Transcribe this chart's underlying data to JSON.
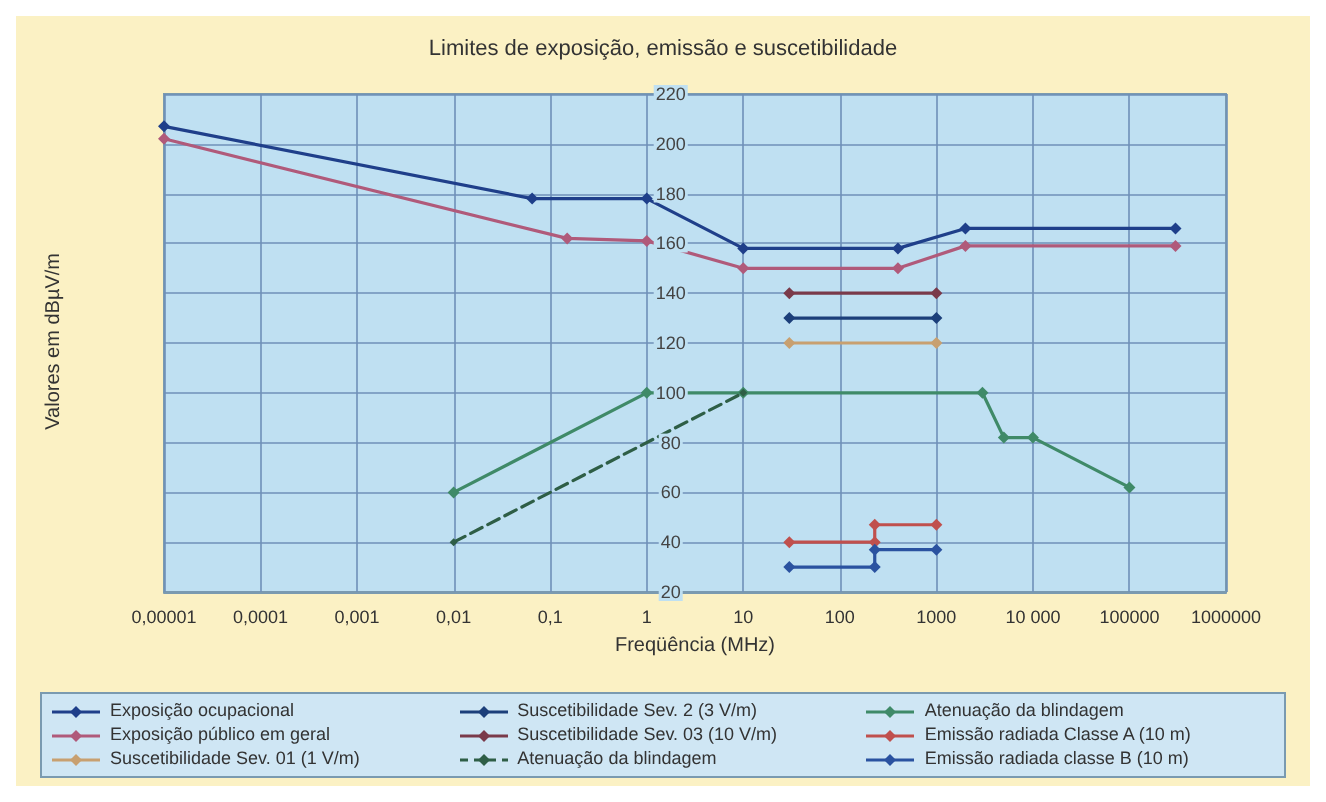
{
  "chart_data": {
    "type": "line",
    "title": "Limites de exposição, emissão e suscetibilidade",
    "xlabel": "Freqüência (MHz)",
    "ylabel": "Valores em dBµV/m",
    "log": "x",
    "xlim": [
      1e-05,
      1000000
    ],
    "xticks": [
      {
        "value": 1e-05,
        "label": "0,00001"
      },
      {
        "value": 0.0001,
        "label": "0,0001"
      },
      {
        "value": 0.001,
        "label": "0,001"
      },
      {
        "value": 0.01,
        "label": "0,01"
      },
      {
        "value": 0.1,
        "label": "0,1"
      },
      1,
      10,
      100,
      1000,
      {
        "value": 10000,
        "label": "10 000"
      },
      100000,
      1000000
    ],
    "ylim": [
      20,
      220
    ],
    "yticks": [
      20,
      40,
      60,
      80,
      100,
      120,
      140,
      160,
      180,
      200,
      220
    ],
    "grid": true,
    "legend": "bottom",
    "marker": "diamond",
    "series": [
      {
        "name": "Exposição ocupacional",
        "color": "#1f3f8a",
        "x": [
          1e-05,
          0.065,
          1,
          10,
          400,
          2000,
          300000
        ],
        "values": [
          207,
          178,
          178,
          158,
          158,
          166,
          166
        ]
      },
      {
        "name": "Suscetibilidade Sev. 2 (3 V/m)",
        "color": "#1c3f7a",
        "x": [
          30,
          1000
        ],
        "values": [
          130,
          130
        ]
      },
      {
        "name": "Atenuação da blindagem",
        "color": "#3f8a68",
        "x": [
          0.01,
          1,
          10,
          3000,
          5000,
          10000,
          100000
        ],
        "values": [
          60,
          100,
          100,
          100,
          82,
          82,
          62
        ]
      },
      {
        "name": "Exposição público em geral",
        "color": "#b05a7a",
        "x": [
          1e-05,
          0.15,
          1,
          10,
          400,
          2000,
          300000
        ],
        "values": [
          202,
          162,
          161,
          150,
          150,
          159,
          159
        ]
      },
      {
        "name": "Suscetibilidade Sev. 03 (10 V/m)",
        "color": "#7a3a4a",
        "x": [
          30,
          1000
        ],
        "values": [
          140,
          140
        ]
      },
      {
        "name": "Emissão radiada Classe A (10 m)",
        "color": "#c0504d",
        "x": [
          30,
          230,
          230,
          1000
        ],
        "values": [
          40,
          40,
          47,
          47
        ]
      },
      {
        "name": "Suscetibilidade Sev. 01 (1 V/m)",
        "color": "#c8a070",
        "x": [
          30,
          1000
        ],
        "values": [
          120,
          120
        ]
      },
      {
        "name": "Atenuação da blindagem",
        "color": "#2e5e46",
        "line_style": "dashed",
        "x": [
          0.01,
          10
        ],
        "values": [
          40,
          100
        ]
      },
      {
        "name": "Emissão radiada classe B (10 m)",
        "color": "#2a52a0",
        "x": [
          30,
          230,
          230,
          1000
        ],
        "values": [
          30,
          30,
          37,
          37
        ]
      }
    ]
  }
}
